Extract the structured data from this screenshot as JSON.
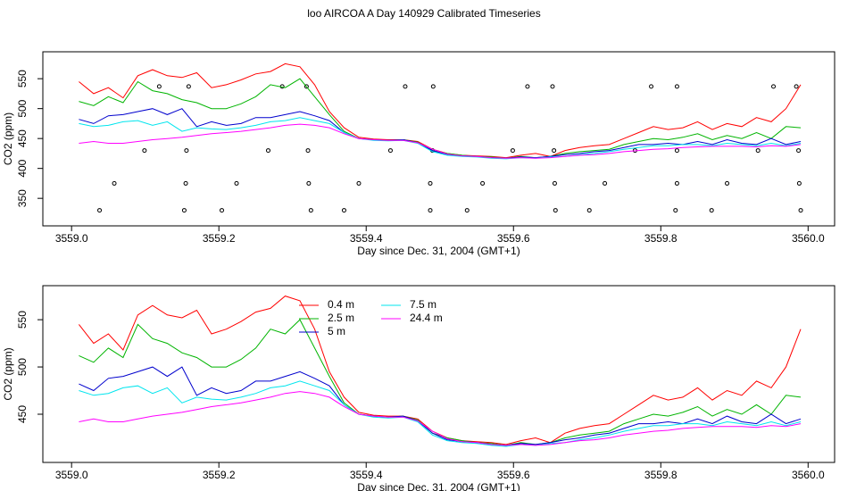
{
  "title": "loo AIRCOA A  Day 140929  Calibrated Timeseries",
  "chart_data": [
    {
      "type": "line",
      "x_label": "Day since Dec. 31, 2004 (GMT+1)",
      "y_label": "CO2 (ppm)",
      "x": [
        3559.01,
        3559.03,
        3559.05,
        3559.07,
        3559.09,
        3559.11,
        3559.13,
        3559.15,
        3559.17,
        3559.19,
        3559.21,
        3559.23,
        3559.25,
        3559.27,
        3559.29,
        3559.31,
        3559.33,
        3559.35,
        3559.37,
        3559.39,
        3559.41,
        3559.43,
        3559.45,
        3559.47,
        3559.49,
        3559.51,
        3559.53,
        3559.55,
        3559.57,
        3559.59,
        3559.61,
        3559.63,
        3559.65,
        3559.67,
        3559.69,
        3559.71,
        3559.73,
        3559.75,
        3559.77,
        3559.79,
        3559.81,
        3559.83,
        3559.85,
        3559.87,
        3559.89,
        3559.91,
        3559.93,
        3559.95,
        3559.97,
        3559.99
      ],
      "series": [
        {
          "color": "#ff0000",
          "values": [
            545,
            525,
            535,
            518,
            555,
            565,
            555,
            552,
            560,
            535,
            540,
            548,
            558,
            562,
            575,
            570,
            540,
            495,
            468,
            452,
            449,
            448,
            448,
            445,
            432,
            425,
            422,
            421,
            420,
            418,
            422,
            425,
            420,
            430,
            435,
            438,
            440,
            450,
            460,
            470,
            465,
            468,
            478,
            465,
            475,
            470,
            485,
            478,
            500,
            540
          ]
        },
        {
          "color": "#00b400",
          "values": [
            512,
            505,
            520,
            510,
            545,
            530,
            525,
            515,
            510,
            500,
            500,
            508,
            520,
            540,
            535,
            550,
            520,
            490,
            462,
            450,
            448,
            447,
            448,
            444,
            430,
            425,
            422,
            420,
            419,
            417,
            420,
            418,
            420,
            425,
            428,
            430,
            432,
            440,
            445,
            450,
            448,
            452,
            458,
            448,
            455,
            450,
            460,
            450,
            470,
            468
          ]
        },
        {
          "color": "#0000cd",
          "values": [
            482,
            475,
            488,
            490,
            495,
            500,
            490,
            500,
            470,
            478,
            472,
            475,
            485,
            485,
            490,
            495,
            488,
            480,
            460,
            450,
            448,
            447,
            448,
            443,
            430,
            423,
            421,
            420,
            418,
            417,
            419,
            418,
            420,
            423,
            425,
            428,
            430,
            435,
            440,
            440,
            442,
            440,
            445,
            440,
            448,
            442,
            440,
            450,
            440,
            445
          ]
        },
        {
          "color": "#00e5ee",
          "values": [
            475,
            470,
            472,
            478,
            480,
            472,
            478,
            462,
            468,
            466,
            465,
            468,
            472,
            478,
            480,
            485,
            480,
            475,
            460,
            450,
            447,
            446,
            447,
            442,
            428,
            422,
            420,
            419,
            417,
            416,
            418,
            417,
            419,
            420,
            423,
            425,
            428,
            432,
            435,
            438,
            438,
            440,
            440,
            438,
            442,
            440,
            438,
            442,
            438,
            442
          ]
        },
        {
          "color": "#ff00ff",
          "values": [
            442,
            445,
            442,
            442,
            445,
            448,
            450,
            452,
            455,
            458,
            460,
            462,
            465,
            468,
            472,
            474,
            472,
            468,
            458,
            450,
            448,
            447,
            447,
            443,
            432,
            424,
            421,
            420,
            418,
            417,
            418,
            417,
            418,
            420,
            422,
            423,
            425,
            428,
            430,
            432,
            433,
            435,
            436,
            437,
            437,
            437,
            436,
            438,
            437,
            440
          ]
        }
      ],
      "points": {
        "x": [
          3559.038,
          3559.058,
          3559.099,
          3559.119,
          3559.153,
          3559.155,
          3559.156,
          3559.159,
          3559.204,
          3559.224,
          3559.267,
          3559.286,
          3559.319,
          3559.321,
          3559.322,
          3559.325,
          3559.37,
          3559.39,
          3559.433,
          3559.453,
          3559.487,
          3559.487,
          3559.49,
          3559.491,
          3559.537,
          3559.558,
          3559.599,
          3559.619,
          3559.653,
          3559.655,
          3559.656,
          3559.657,
          3559.703,
          3559.724,
          3559.765,
          3559.787,
          3559.822,
          3559.822,
          3559.822,
          3559.82,
          3559.869,
          3559.89,
          3559.932,
          3559.953,
          3559.984,
          3559.987,
          3559.988,
          3559.99
        ],
        "values": [
          330,
          375,
          430,
          537,
          330,
          375,
          430,
          537,
          330,
          375,
          430,
          537,
          537,
          430,
          375,
          330,
          330,
          375,
          430,
          537,
          375,
          330,
          430,
          537,
          330,
          375,
          430,
          537,
          537,
          430,
          375,
          330,
          330,
          375,
          430,
          537,
          537,
          430,
          375,
          330,
          330,
          375,
          430,
          537,
          537,
          430,
          375,
          330
        ]
      },
      "xlim": [
        3558.961,
        3560.036
      ],
      "xticks": [
        {
          "value": 3559.0,
          "label": "3559.0"
        },
        3559.2,
        3559.4,
        3559.6,
        3559.8,
        {
          "value": 3560.0,
          "label": "3560.0"
        }
      ],
      "ylim": [
        304,
        595
      ],
      "yticks": [
        350,
        400,
        450,
        500,
        550
      ]
    },
    {
      "type": "line",
      "x_label": "Day since Dec. 31, 2004 (GMT+1)",
      "y_label": "CO2 (ppm)",
      "legend": "top-center",
      "x": [
        3559.01,
        3559.03,
        3559.05,
        3559.07,
        3559.09,
        3559.11,
        3559.13,
        3559.15,
        3559.17,
        3559.19,
        3559.21,
        3559.23,
        3559.25,
        3559.27,
        3559.29,
        3559.31,
        3559.33,
        3559.35,
        3559.37,
        3559.39,
        3559.41,
        3559.43,
        3559.45,
        3559.47,
        3559.49,
        3559.51,
        3559.53,
        3559.55,
        3559.57,
        3559.59,
        3559.61,
        3559.63,
        3559.65,
        3559.67,
        3559.69,
        3559.71,
        3559.73,
        3559.75,
        3559.77,
        3559.79,
        3559.81,
        3559.83,
        3559.85,
        3559.87,
        3559.89,
        3559.91,
        3559.93,
        3559.95,
        3559.97,
        3559.99
      ],
      "series": [
        {
          "name": "0.4 m",
          "color": "#ff0000",
          "values": [
            545,
            525,
            535,
            518,
            555,
            565,
            555,
            552,
            560,
            535,
            540,
            548,
            558,
            562,
            575,
            570,
            540,
            495,
            468,
            452,
            449,
            448,
            448,
            445,
            432,
            425,
            422,
            421,
            420,
            418,
            422,
            425,
            420,
            430,
            435,
            438,
            440,
            450,
            460,
            470,
            465,
            468,
            478,
            465,
            475,
            470,
            485,
            478,
            500,
            540
          ]
        },
        {
          "name": "2.5 m",
          "color": "#00b400",
          "values": [
            512,
            505,
            520,
            510,
            545,
            530,
            525,
            515,
            510,
            500,
            500,
            508,
            520,
            540,
            535,
            550,
            520,
            490,
            462,
            450,
            448,
            447,
            448,
            444,
            430,
            425,
            422,
            420,
            419,
            417,
            420,
            418,
            420,
            425,
            428,
            430,
            432,
            440,
            445,
            450,
            448,
            452,
            458,
            448,
            455,
            450,
            460,
            450,
            470,
            468
          ]
        },
        {
          "name": "5 m",
          "color": "#0000cd",
          "values": [
            482,
            475,
            488,
            490,
            495,
            500,
            490,
            500,
            470,
            478,
            472,
            475,
            485,
            485,
            490,
            495,
            488,
            480,
            460,
            450,
            448,
            447,
            448,
            443,
            430,
            423,
            421,
            420,
            418,
            417,
            419,
            418,
            420,
            423,
            425,
            428,
            430,
            435,
            440,
            440,
            442,
            440,
            445,
            440,
            448,
            442,
            440,
            450,
            440,
            445
          ]
        },
        {
          "name": "7.5 m",
          "color": "#00e5ee",
          "values": [
            475,
            470,
            472,
            478,
            480,
            472,
            478,
            462,
            468,
            466,
            465,
            468,
            472,
            478,
            480,
            485,
            480,
            475,
            460,
            450,
            447,
            446,
            447,
            442,
            428,
            422,
            420,
            419,
            417,
            416,
            418,
            417,
            419,
            420,
            423,
            425,
            428,
            432,
            435,
            438,
            438,
            440,
            440,
            438,
            442,
            440,
            438,
            442,
            438,
            442
          ]
        },
        {
          "name": "24.4 m",
          "color": "#ff00ff",
          "values": [
            442,
            445,
            442,
            442,
            445,
            448,
            450,
            452,
            455,
            458,
            460,
            462,
            465,
            468,
            472,
            474,
            472,
            468,
            458,
            450,
            448,
            447,
            447,
            443,
            432,
            424,
            421,
            420,
            418,
            417,
            418,
            417,
            418,
            420,
            422,
            423,
            425,
            428,
            430,
            432,
            433,
            435,
            436,
            437,
            437,
            437,
            436,
            438,
            437,
            440
          ]
        }
      ],
      "xlim": [
        3558.961,
        3560.036
      ],
      "xticks": [
        {
          "value": 3559.0,
          "label": "3559.0"
        },
        3559.2,
        3559.4,
        3559.6,
        3559.8,
        {
          "value": 3560.0,
          "label": "3560.0"
        }
      ],
      "ylim": [
        399,
        586
      ],
      "yticks": [
        450,
        500,
        550
      ]
    }
  ]
}
